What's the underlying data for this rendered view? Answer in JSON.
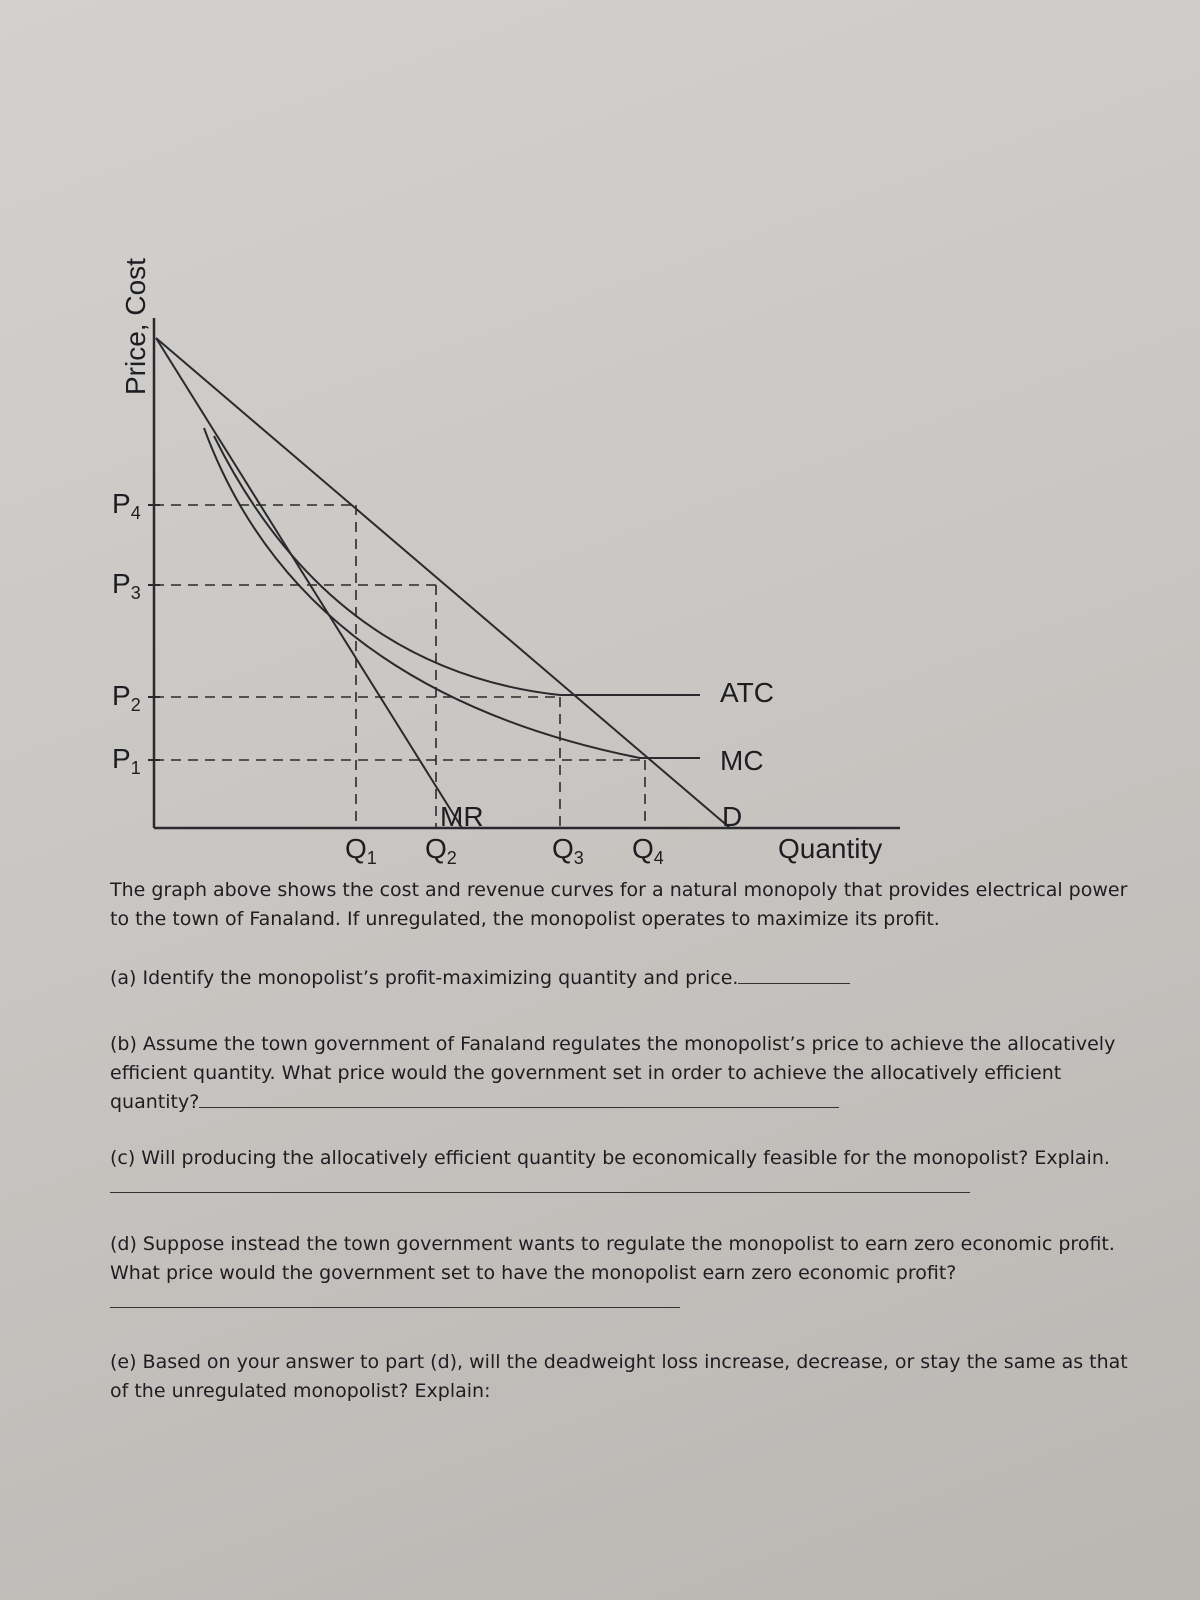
{
  "graph": {
    "y_axis_label": "Price, Cost",
    "x_axis_label": "Quantity",
    "price_labels": [
      {
        "base": "P",
        "sub": "4"
      },
      {
        "base": "P",
        "sub": "3"
      },
      {
        "base": "P",
        "sub": "2"
      },
      {
        "base": "P",
        "sub": "1"
      }
    ],
    "quantity_labels": [
      {
        "base": "Q",
        "sub": "1"
      },
      {
        "base": "Q",
        "sub": "2"
      },
      {
        "base": "Q",
        "sub": "3"
      },
      {
        "base": "Q",
        "sub": "4"
      }
    ],
    "curve_labels": {
      "atc": "ATC",
      "mc": "MC",
      "d": "D",
      "mr": "MR"
    }
  },
  "intro": "The graph above shows the cost and revenue curves for a natural monopoly that provides electrical power to the town of Fanaland. If unregulated, the monopolist operates to maximize its profit.",
  "questions": [
    "(a) Identify the monopolist’s profit-maximizing quantity and price.",
    "(b) Assume the town government of Fanaland regulates the monopolist’s price to achieve the allocatively efficient quantity. What price would the government set in order to achieve the allocatively efficient quantity?",
    "(c) Will producing the allocatively efficient quantity be economically feasible for the monopolist? Explain.",
    "(d) Suppose instead the town government wants to regulate the monopolist to earn zero economic profit. What price would the government set to have the monopolist earn zero economic profit?",
    "(e) Based on your answer to part (d), will the deadweight loss increase, decrease, or stay the same as that of the unregulated monopolist? Explain:"
  ]
}
